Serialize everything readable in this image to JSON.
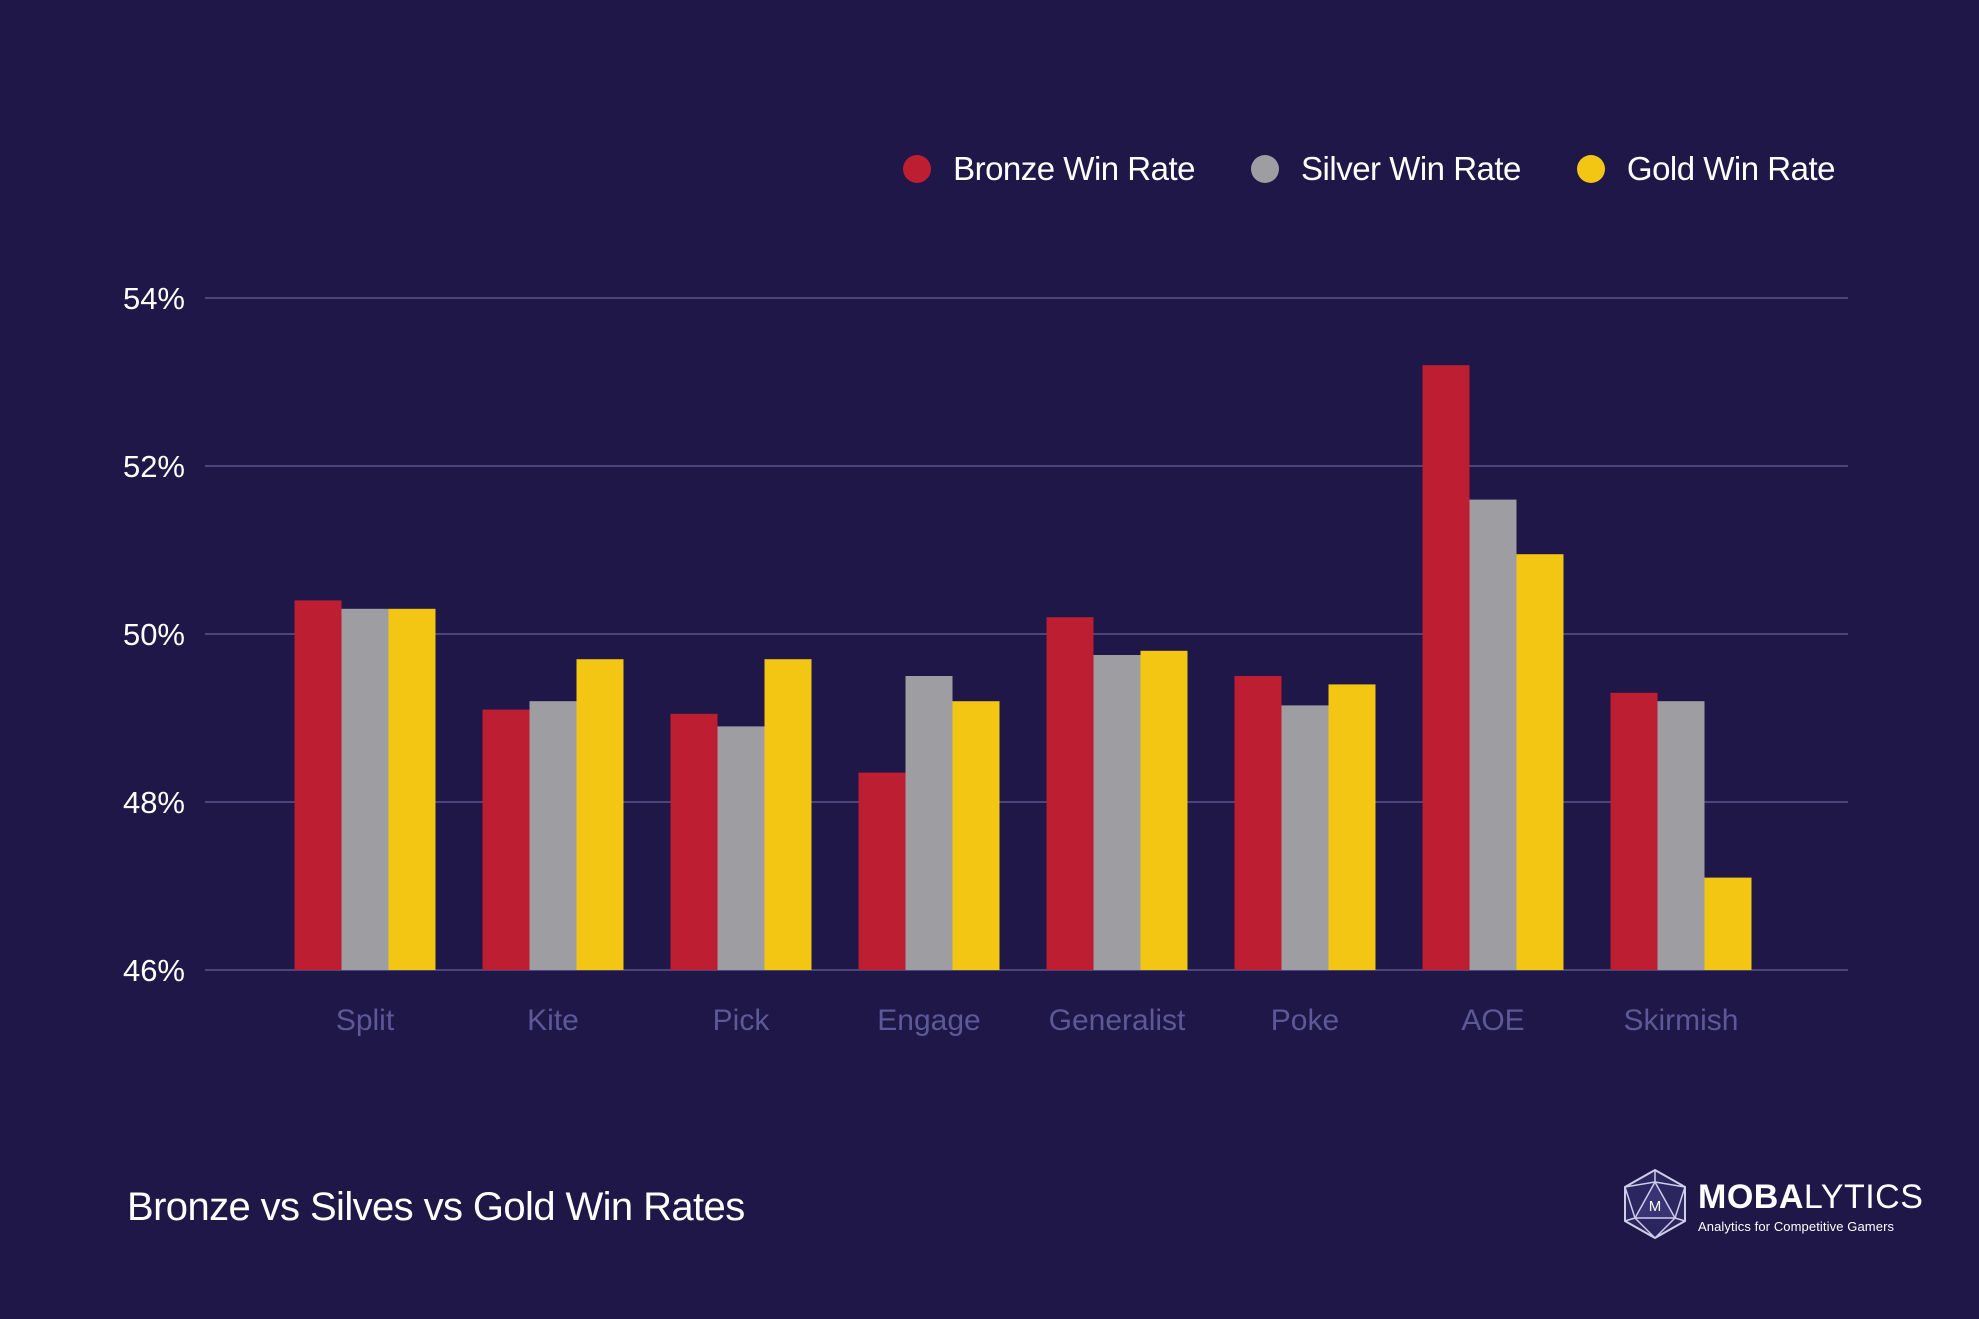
{
  "legend": {
    "items": [
      {
        "label": "Bronze Win Rate",
        "color": "#be1e32"
      },
      {
        "label": "Silver Win Rate",
        "color": "#9e9ea2"
      },
      {
        "label": "Gold Win Rate",
        "color": "#f2c613"
      }
    ]
  },
  "footer": {
    "title": "Bronze vs Silves vs Gold Win Rates"
  },
  "brand": {
    "name_bold": "MOBA",
    "name_light": "LYTICS",
    "tagline": "Analytics for Competitive Gamers",
    "logo_icon": "d20-dice-icon",
    "logo_letter": "M"
  },
  "chart_data": {
    "type": "bar",
    "title": "Bronze vs Silves vs Gold Win Rates",
    "xlabel": "",
    "ylabel": "",
    "ylim": [
      46,
      54
    ],
    "yticks": [
      46,
      48,
      50,
      52,
      54
    ],
    "ytick_labels": [
      "46%",
      "48%",
      "50%",
      "52%",
      "54%"
    ],
    "grid": true,
    "legend_position": "top-right",
    "categories": [
      "Split",
      "Kite",
      "Pick",
      "Engage",
      "Generalist",
      "Poke",
      "AOE",
      "Skirmish"
    ],
    "series": [
      {
        "name": "Bronze Win Rate",
        "color": "#be1e32",
        "values": [
          50.4,
          49.1,
          49.05,
          48.35,
          50.2,
          49.5,
          53.2,
          49.3
        ]
      },
      {
        "name": "Silver Win Rate",
        "color": "#9e9ea2",
        "values": [
          50.3,
          49.2,
          48.9,
          49.5,
          49.75,
          49.15,
          51.6,
          49.2
        ]
      },
      {
        "name": "Gold Win Rate",
        "color": "#f2c613",
        "values": [
          50.3,
          49.7,
          49.7,
          49.2,
          49.8,
          49.4,
          50.95,
          47.1
        ]
      }
    ],
    "colors": {
      "background": "#1e1747",
      "grid": "#4b4579",
      "category_label": "#5d5898",
      "tick_label": "#ffffff"
    }
  }
}
